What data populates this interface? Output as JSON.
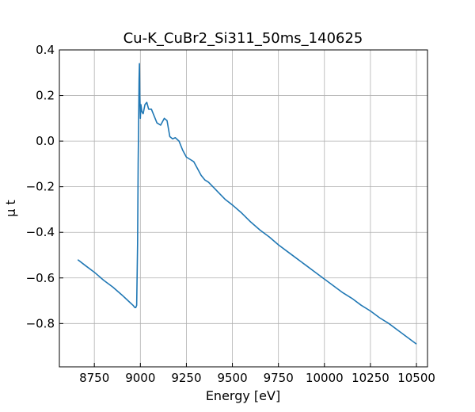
{
  "chart_data": {
    "type": "line",
    "title": "Cu-K_CuBr2_Si311_50ms_140625",
    "xlabel": "Energy [eV]",
    "ylabel": "μ t",
    "xlim": [
      8560,
      10560
    ],
    "ylim": [
      -0.99,
      0.4
    ],
    "xticks": [
      8750,
      9000,
      9250,
      9500,
      9750,
      10000,
      10250,
      10500
    ],
    "yticks": [
      0.4,
      0.2,
      0.0,
      -0.2,
      -0.4,
      -0.6,
      -0.8
    ],
    "xtick_labels": [
      "8750",
      "9000",
      "9250",
      "9500",
      "9750",
      "10000",
      "10250",
      "10500"
    ],
    "ytick_labels": [
      "0.4",
      "0.2",
      "0.0",
      "−0.2",
      "−0.4",
      "−0.6",
      "−0.8"
    ],
    "grid": true,
    "line_color": "#1f77b4",
    "series": [
      {
        "x": [
          8660,
          8700,
          8750,
          8800,
          8850,
          8900,
          8940,
          8960,
          8970,
          8975,
          8980,
          8985,
          8988,
          8991,
          8993,
          8995,
          8997,
          9000,
          9003,
          9008,
          9015,
          9025,
          9035,
          9045,
          9060,
          9075,
          9090,
          9110,
          9130,
          9145,
          9160,
          9175,
          9190,
          9210,
          9230,
          9250,
          9270,
          9290,
          9310,
          9330,
          9350,
          9370,
          9400,
          9430,
          9460,
          9500,
          9550,
          9600,
          9650,
          9700,
          9750,
          9800,
          9850,
          9900,
          9950,
          10000,
          10050,
          10100,
          10150,
          10200,
          10250,
          10300,
          10350,
          10400,
          10450,
          10500
        ],
        "y": [
          -0.52,
          -0.545,
          -0.575,
          -0.61,
          -0.64,
          -0.675,
          -0.705,
          -0.72,
          -0.73,
          -0.73,
          -0.72,
          -0.45,
          -0.1,
          0.12,
          0.27,
          0.34,
          0.2,
          0.1,
          0.16,
          0.13,
          0.12,
          0.16,
          0.17,
          0.14,
          0.14,
          0.11,
          0.08,
          0.07,
          0.1,
          0.09,
          0.02,
          0.01,
          0.015,
          0.0,
          -0.04,
          -0.07,
          -0.08,
          -0.09,
          -0.12,
          -0.15,
          -0.17,
          -0.18,
          -0.205,
          -0.23,
          -0.255,
          -0.28,
          -0.315,
          -0.355,
          -0.39,
          -0.42,
          -0.455,
          -0.485,
          -0.515,
          -0.545,
          -0.575,
          -0.605,
          -0.635,
          -0.665,
          -0.69,
          -0.72,
          -0.745,
          -0.775,
          -0.8,
          -0.83,
          -0.86,
          -0.89
        ]
      }
    ]
  }
}
